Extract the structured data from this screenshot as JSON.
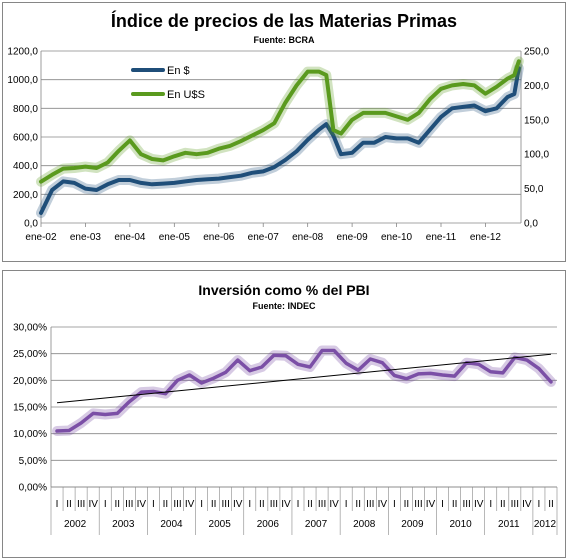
{
  "chart_data": [
    {
      "type": "line",
      "title": "Índice de precios de las Materias Primas",
      "subtitle": "Fuente: BCRA",
      "x_tick_labels": [
        "ene-02",
        "ene-03",
        "ene-04",
        "ene-05",
        "ene-06",
        "ene-07",
        "ene-08",
        "ene-09",
        "ene-10",
        "ene-11",
        "ene-12"
      ],
      "y_left": {
        "range": [
          0,
          1200
        ],
        "ticks": [
          0,
          200,
          400,
          600,
          800,
          1000,
          1200
        ],
        "labels": [
          "0,0",
          "200,0",
          "400,0",
          "600,0",
          "800,0",
          "1000,0",
          "1200,0"
        ]
      },
      "y_right": {
        "range": [
          0,
          250
        ],
        "ticks": [
          0,
          50,
          100,
          150,
          200,
          250
        ],
        "labels": [
          "0,0",
          "50,0",
          "100,0",
          "150,0",
          "200,0",
          "250,0"
        ]
      },
      "grid": "horizontal",
      "legend_position": "top-left",
      "series": [
        {
          "name": "En $",
          "axis": "left",
          "color": "#1F4E79",
          "x": [
            2002.0,
            2002.25,
            2002.5,
            2002.75,
            2003.0,
            2003.25,
            2003.5,
            2003.75,
            2004.0,
            2004.25,
            2004.5,
            2004.75,
            2005.0,
            2005.25,
            2005.5,
            2005.75,
            2006.0,
            2006.25,
            2006.5,
            2006.75,
            2007.0,
            2007.25,
            2007.5,
            2007.75,
            2008.0,
            2008.25,
            2008.42,
            2008.58,
            2008.75,
            2009.0,
            2009.25,
            2009.5,
            2009.75,
            2010.0,
            2010.25,
            2010.5,
            2010.75,
            2011.0,
            2011.25,
            2011.5,
            2011.75,
            2012.0,
            2012.25,
            2012.5,
            2012.65,
            2012.75
          ],
          "y": [
            70,
            230,
            290,
            280,
            240,
            230,
            270,
            300,
            300,
            280,
            270,
            275,
            280,
            290,
            300,
            305,
            310,
            320,
            330,
            350,
            360,
            390,
            440,
            500,
            580,
            650,
            690,
            610,
            480,
            490,
            560,
            560,
            600,
            590,
            590,
            560,
            650,
            740,
            800,
            810,
            820,
            780,
            800,
            880,
            900,
            1080
          ]
        },
        {
          "name": "En U$S",
          "axis": "right",
          "color": "#5A9A1E",
          "x": [
            2002.0,
            2002.25,
            2002.5,
            2002.75,
            2003.0,
            2003.25,
            2003.5,
            2003.75,
            2004.0,
            2004.25,
            2004.5,
            2004.75,
            2005.0,
            2005.25,
            2005.5,
            2005.75,
            2006.0,
            2006.25,
            2006.5,
            2006.75,
            2007.0,
            2007.25,
            2007.5,
            2007.75,
            2008.0,
            2008.25,
            2008.42,
            2008.58,
            2008.75,
            2009.0,
            2009.25,
            2009.5,
            2009.75,
            2010.0,
            2010.25,
            2010.5,
            2010.75,
            2011.0,
            2011.25,
            2011.5,
            2011.75,
            2012.0,
            2012.25,
            2012.5,
            2012.65,
            2012.75
          ],
          "y": [
            60,
            70,
            79,
            80,
            82,
            80,
            88,
            105,
            120,
            100,
            93,
            91,
            97,
            102,
            100,
            102,
            108,
            112,
            119,
            127,
            135,
            145,
            175,
            200,
            220,
            220,
            215,
            135,
            130,
            150,
            160,
            160,
            160,
            155,
            150,
            160,
            180,
            195,
            200,
            202,
            200,
            188,
            198,
            210,
            215,
            235
          ]
        }
      ]
    },
    {
      "type": "line",
      "title": "Inversión como % del PBI",
      "subtitle": "Fuente: INDEC",
      "y_range": [
        0,
        30
      ],
      "y_ticks": [
        0,
        5,
        10,
        15,
        20,
        25,
        30
      ],
      "y_tick_labels": [
        "0,00%",
        "5,00%",
        "10,00%",
        "15,00%",
        "20,00%",
        "25,00%",
        "30,00%"
      ],
      "grid": "horizontal",
      "quarter_labels": [
        "I",
        "II",
        "III",
        "IV"
      ],
      "quarters_last_year": [
        "I",
        "II"
      ],
      "years": [
        "2002",
        "2003",
        "2004",
        "2005",
        "2006",
        "2007",
        "2008",
        "2009",
        "2010",
        "2011",
        "2012"
      ],
      "series": [
        {
          "name": "",
          "color": "#7B4FA6",
          "values": [
            10.5,
            10.6,
            12.0,
            13.8,
            13.6,
            13.8,
            16.0,
            17.8,
            17.9,
            17.5,
            20.0,
            21.0,
            19.5,
            20.4,
            21.5,
            23.8,
            21.8,
            22.5,
            24.7,
            24.6,
            23.0,
            22.5,
            25.6,
            25.6,
            23.2,
            21.9,
            24.0,
            23.3,
            20.9,
            20.3,
            21.2,
            21.3,
            21.0,
            20.8,
            23.3,
            23.0,
            21.6,
            21.4,
            24.3,
            23.8,
            22.2,
            19.7
          ]
        }
      ],
      "trendline": {
        "start": 15.8,
        "end": 24.9,
        "color": "#000000"
      }
    }
  ]
}
